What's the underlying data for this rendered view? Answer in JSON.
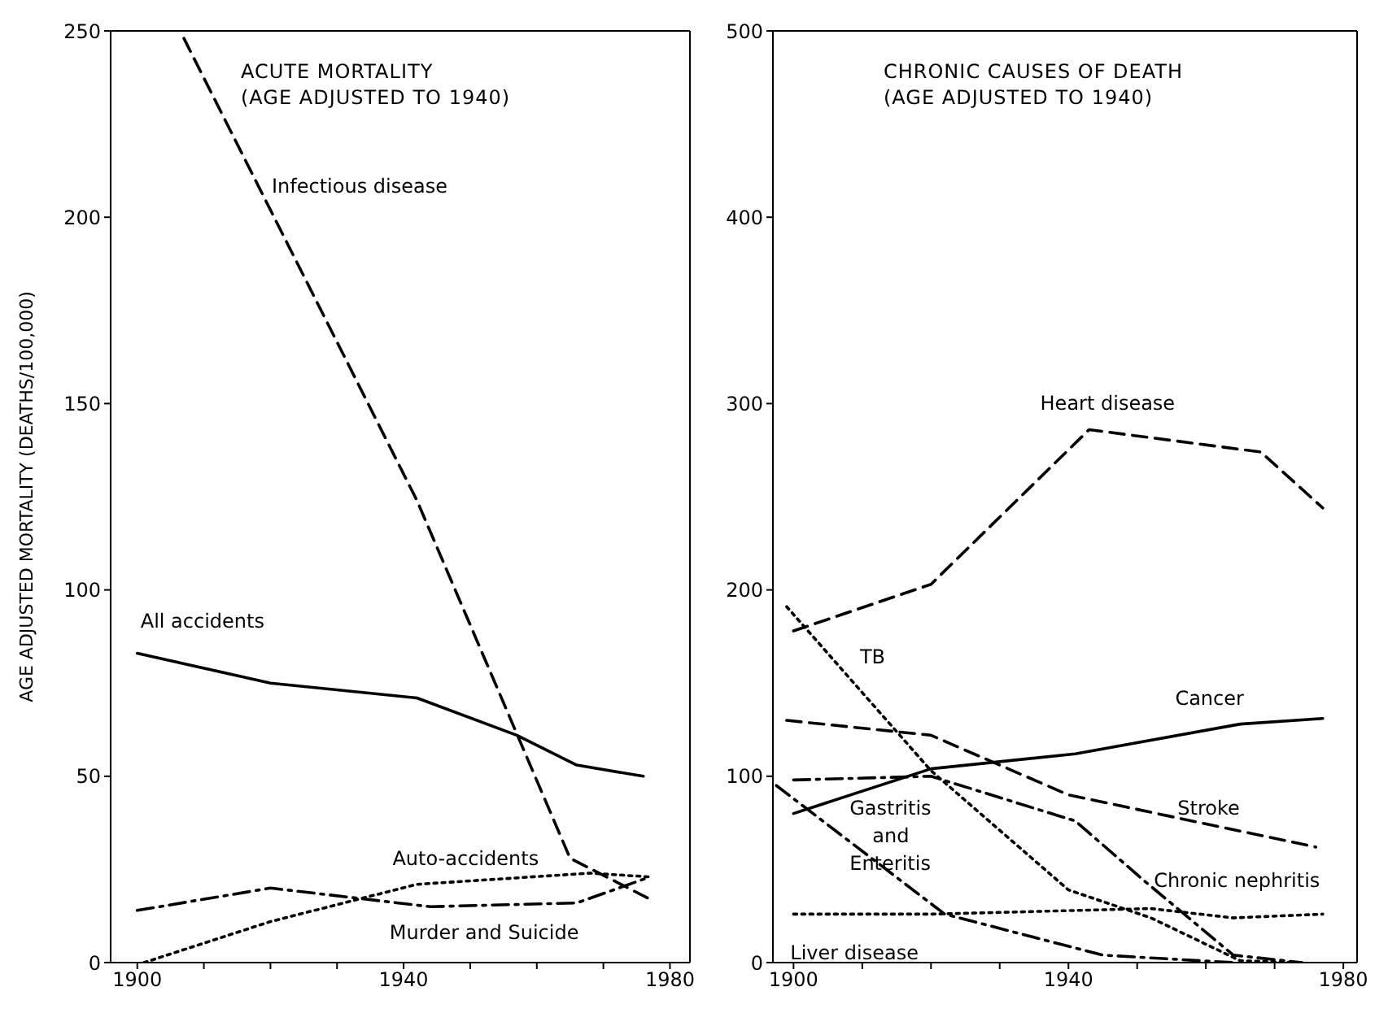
{
  "chart_data": [
    {
      "type": "line",
      "title": "ACUTE MORTALITY\n(AGE ADJUSTED TO 1940)",
      "ylabel": "AGE ADJUSTED MORTALITY (DEATHS/100,000)",
      "xlim": [
        1896,
        1983
      ],
      "xticks": [
        1900,
        {
          "value": 1910,
          "label": null
        },
        {
          "value": 1920,
          "label": null
        },
        {
          "value": 1930,
          "label": null
        },
        1940,
        {
          "value": 1950,
          "label": null
        },
        {
          "value": 1960,
          "label": null
        },
        {
          "value": 1970,
          "label": null
        },
        1980
      ],
      "ylim": [
        0,
        250
      ],
      "yticks": [
        0,
        50,
        100,
        150,
        200,
        250
      ],
      "marker": "none",
      "series": [
        {
          "name": "Infectious disease",
          "color": "#000000",
          "line_style": "dashed",
          "x": [
            1907,
            1942,
            1965,
            1977
          ],
          "values": [
            248,
            124,
            28,
            17
          ]
        },
        {
          "name": "All accidents",
          "color": "#000000",
          "line_style": "solid",
          "x": [
            1900,
            1920,
            1942,
            1957,
            1966,
            1976
          ],
          "values": [
            83,
            75,
            71,
            61,
            53,
            50
          ]
        },
        {
          "name": "Auto-accidents",
          "color": "#000000",
          "line_style": "dotted",
          "x": [
            1901,
            1920,
            1942,
            1968,
            1977
          ],
          "values": [
            0,
            11,
            21,
            24,
            23
          ]
        },
        {
          "name": "Murder and Suicide",
          "color": "#000000",
          "line_style": "dashdot",
          "x": [
            1900,
            1920,
            1944,
            1966,
            1977
          ],
          "values": [
            14,
            20,
            15,
            16,
            23
          ]
        }
      ]
    },
    {
      "type": "line",
      "title": "CHRONIC CAUSES OF DEATH\n(AGE ADJUSTED TO 1940)",
      "xlim": [
        1897,
        1982
      ],
      "xticks": [
        1900,
        {
          "value": 1910,
          "label": null
        },
        {
          "value": 1920,
          "label": null
        },
        {
          "value": 1930,
          "label": null
        },
        1940,
        {
          "value": 1950,
          "label": null
        },
        {
          "value": 1960,
          "label": null
        },
        {
          "value": 1970,
          "label": null
        },
        1980
      ],
      "ylim": [
        0,
        500
      ],
      "yticks": [
        0,
        100,
        200,
        300,
        400,
        500
      ],
      "marker": "none",
      "series": [
        {
          "name": "Heart disease",
          "color": "#000000",
          "line_style": "dashed",
          "x": [
            1900,
            1920,
            1943,
            1968,
            1977
          ],
          "values": [
            178,
            203,
            286,
            274,
            244
          ]
        },
        {
          "name": "TB",
          "color": "#000000",
          "line_style": "dotted",
          "x": [
            1899,
            1920,
            1940,
            1952,
            1965,
            1974
          ],
          "values": [
            191,
            103,
            39,
            24,
            1,
            0
          ]
        },
        {
          "name": "Cancer",
          "color": "#000000",
          "line_style": "solid",
          "x": [
            1900,
            1920,
            1941,
            1965,
            1977
          ],
          "values": [
            80,
            104,
            112,
            128,
            131
          ]
        },
        {
          "name": "Stroke",
          "color": "#000000",
          "line_style": "dashed",
          "x": [
            1899,
            1920,
            1940,
            1976
          ],
          "values": [
            130,
            122,
            90,
            62
          ]
        },
        {
          "name": "Chronic nephritis",
          "color": "#000000",
          "line_style": "dashdot",
          "x": [
            1900,
            1920,
            1941,
            1951,
            1964,
            1974
          ],
          "values": [
            98,
            100,
            76,
            44,
            4,
            0
          ]
        },
        {
          "name": "Gastritis and Enteritis",
          "color": "#000000",
          "line_style": "dashdot",
          "x": [
            1897.5,
            1922,
            1945,
            1964
          ],
          "values": [
            95,
            26,
            4,
            0
          ]
        },
        {
          "name": "Liver disease",
          "color": "#000000",
          "line_style": "dotted",
          "x": [
            1900,
            1920,
            1952,
            1964,
            1977
          ],
          "values": [
            26,
            26,
            29,
            24,
            26
          ]
        }
      ]
    }
  ]
}
